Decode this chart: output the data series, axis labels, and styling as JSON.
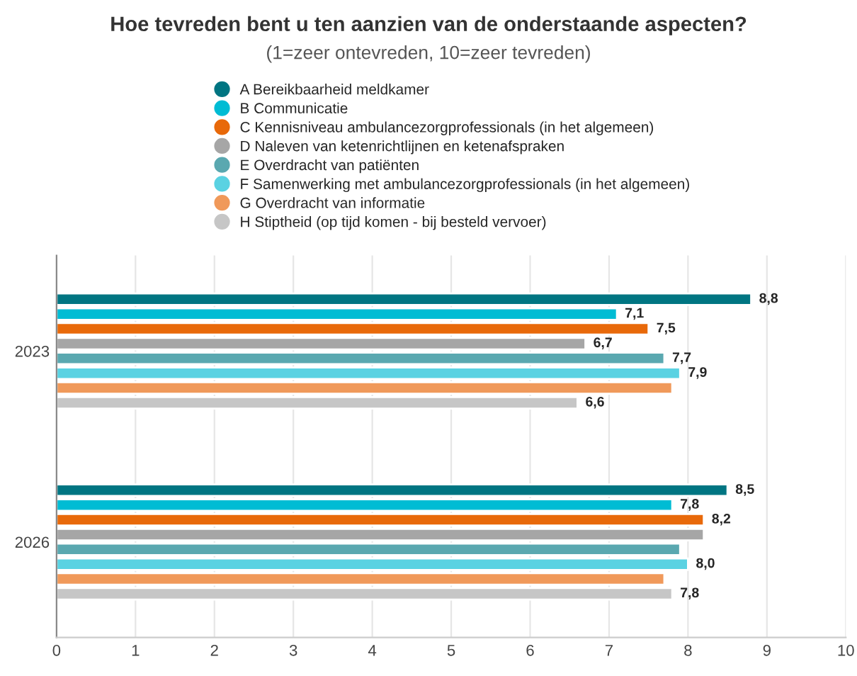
{
  "chart_data": {
    "type": "bar",
    "orientation": "horizontal",
    "title": "Hoe tevreden bent u ten aanzien van de onderstaande aspecten?",
    "subtitle": "(1=zeer ontevreden, 10=zeer tevreden)",
    "categories": [
      "2023",
      "2026"
    ],
    "series": [
      {
        "name": "A Bereikbaarheid meldkamer",
        "color": "#007582",
        "values": [
          8.8,
          8.5
        ],
        "value_labels": [
          "8,8",
          "8,5"
        ]
      },
      {
        "name": "B Communicatie",
        "color": "#00bcd4",
        "values": [
          7.1,
          7.8
        ],
        "value_labels": [
          "7,1",
          "7,8"
        ]
      },
      {
        "name": "C Kennisniveau ambulancezorgprofessionals (in het algemeen)",
        "color": "#e8690a",
        "values": [
          7.5,
          8.2
        ],
        "value_labels": [
          "7,5",
          "8,2"
        ]
      },
      {
        "name": "D Naleven van ketenrichtlijnen en ketenafspraken",
        "color": "#a6a6a6",
        "values": [
          6.7,
          8.2
        ],
        "value_labels": [
          "6,7",
          null
        ]
      },
      {
        "name": "E Overdracht van patiënten",
        "color": "#5aa8b0",
        "values": [
          7.7,
          7.9
        ],
        "value_labels": [
          "7,7",
          null
        ]
      },
      {
        "name": "F Samenwerking met ambulancezorgprofessionals (in het algemeen)",
        "color": "#5ad2e2",
        "values": [
          7.9,
          8.0
        ],
        "value_labels": [
          "7,9",
          "8,0"
        ]
      },
      {
        "name": "G Overdracht van informatie",
        "color": "#f0995a",
        "values": [
          7.8,
          7.7
        ],
        "value_labels": [
          null,
          null
        ]
      },
      {
        "name": "H Stiptheid (op tijd komen - bij besteld vervoer)",
        "color": "#c6c6c6",
        "values": [
          6.6,
          7.8
        ],
        "value_labels": [
          "6,6",
          "7,8"
        ]
      }
    ],
    "xlim": [
      0,
      10
    ],
    "xticks": [
      0,
      1,
      2,
      3,
      4,
      5,
      6,
      7,
      8,
      9,
      10
    ],
    "grid": "x",
    "legend": "top",
    "marker": "circle"
  }
}
